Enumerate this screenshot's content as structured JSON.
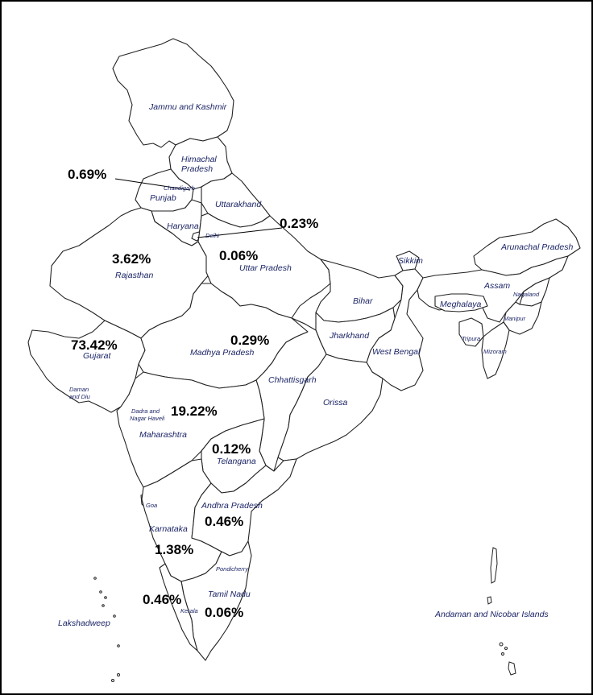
{
  "states": {
    "jammu_kashmir": "Jammu and Kashmir",
    "himachal": "Himachal Pradesh",
    "himachal_1": "Himachal",
    "himachal_2": "Pradesh",
    "chandigarh": "Chandigarh",
    "punjab": "Punjab",
    "uttarakhand": "Uttarakhand",
    "haryana": "Haryana",
    "delhi": "Delhi",
    "rajasthan": "Rajasthan",
    "uttar_pradesh": "Uttar Pradesh",
    "sikkim": "Sikkim",
    "arunachal": "Arunachal Pradesh",
    "assam": "Assam",
    "nagaland": "Nagaland",
    "meghalaya": "Meghalaya",
    "manipur": "Manipur",
    "tripura": "Tripura",
    "mizoram": "Mizoram",
    "bihar": "Bihar",
    "jharkhand": "Jharkhand",
    "west_bengal": "West Bengal",
    "gujarat": "Gujarat",
    "madhya_pradesh": "Madhya Pradesh",
    "chhattisgarh": "Chhattisgarh",
    "orissa": "Orissa",
    "daman_1": "Daman",
    "daman_2": "and Diu",
    "dadra_1": "Dadra and",
    "dadra_2": "Nagar Haveli",
    "maharashtra": "Maharashtra",
    "telangana": "Telangana",
    "goa": "Goa",
    "andhra": "Andhra Pradesh",
    "karnataka": "Karnataka",
    "pondicherry": "Pondicherry",
    "tamil_nadu": "Tamil Nadu",
    "kerala": "Kerala",
    "lakshadweep": "Lakshadweep",
    "andaman": "Andaman and Nicobar Islands"
  },
  "values": {
    "punjab_chandigarh": "0.69%",
    "delhi": "0.23%",
    "rajasthan": "3.62%",
    "uttar_pradesh": "0.06%",
    "gujarat": "73.42%",
    "madhya_pradesh": "0.29%",
    "maharashtra": "19.22%",
    "telangana": "0.12%",
    "andhra": "0.46%",
    "karnataka": "1.38%",
    "kerala": "0.46%",
    "tamil_nadu": "0.06%"
  }
}
